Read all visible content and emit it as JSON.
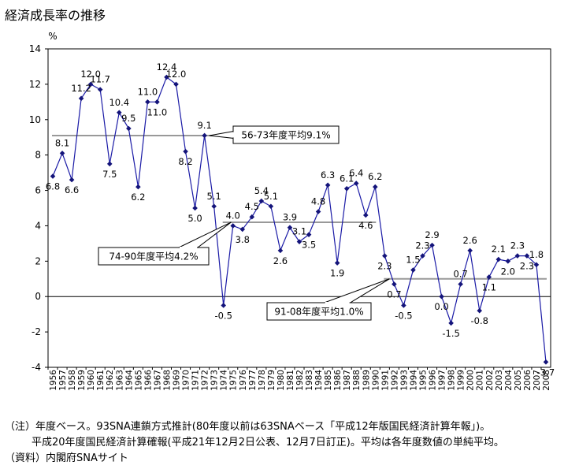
{
  "title": "経済成長率の推移",
  "chart_data": {
    "type": "line",
    "title": "経済成長率の推移",
    "ylabel": "%",
    "ylim": [
      -4,
      14
    ],
    "yticks": [
      14,
      12,
      10,
      8,
      6,
      4,
      2,
      0,
      -2,
      -4
    ],
    "grid": false,
    "categories": [
      "1956",
      "1957",
      "1958",
      "1959",
      "1960",
      "1961",
      "1962",
      "1963",
      "1964",
      "1965",
      "1966",
      "1967",
      "1968",
      "1969",
      "1970",
      "1971",
      "1972",
      "1973",
      "1974",
      "1975",
      "1976",
      "1977",
      "1978",
      "1979",
      "1980",
      "1981",
      "1982",
      "1983",
      "1984",
      "1985",
      "1986",
      "1987",
      "1988",
      "1989",
      "1990",
      "1991",
      "1992",
      "1993",
      "1994",
      "1995",
      "1996",
      "1997",
      "1998",
      "1999",
      "2000",
      "2001",
      "2002",
      "2003",
      "2004",
      "2005",
      "2006",
      "2007",
      "2008"
    ],
    "values": [
      6.8,
      8.1,
      6.6,
      11.2,
      12.0,
      11.7,
      7.5,
      10.4,
      9.5,
      6.2,
      11.0,
      11.0,
      12.4,
      12.0,
      8.2,
      5.0,
      9.1,
      5.1,
      -0.5,
      4.0,
      3.8,
      4.5,
      5.4,
      5.1,
      2.6,
      3.9,
      3.1,
      3.5,
      4.8,
      6.3,
      1.9,
      6.1,
      6.4,
      4.6,
      6.2,
      2.3,
      0.7,
      -0.5,
      1.5,
      2.3,
      2.9,
      0.0,
      -1.5,
      0.7,
      2.6,
      -0.8,
      1.1,
      2.1,
      2.0,
      2.3,
      2.3,
      1.8,
      -3.7
    ],
    "data_labels": [
      "6.8",
      "8.1",
      "6.6",
      "11.2",
      "12.0",
      "11.7",
      "7.5",
      "10.4",
      "9.5",
      "6.2",
      "11.0",
      "11.0",
      "12.4",
      "12.0",
      "8.2",
      "5.0",
      "9.1",
      "5.1",
      "-0.5",
      "4.0",
      "3.8",
      "4.5",
      "5.4",
      "5.1",
      "2.6",
      "3.9",
      "3.1",
      "3.5",
      "4.8",
      "6.3",
      "1.9",
      "6.1",
      "6.4",
      "4.6",
      "6.2",
      "2.3",
      "0.7",
      "-0.5",
      "1.5",
      "2.3",
      "2.9",
      "0.0",
      "-1.5",
      "0.7",
      "2.6",
      "-0.8",
      "1.1",
      "2.1",
      "2.0",
      "2.3",
      "2.3",
      "1.8",
      "-3.7"
    ],
    "label_sides": [
      "b",
      "t",
      "b",
      "t",
      "t",
      "t",
      "b",
      "t",
      "t",
      "b",
      "t",
      "b",
      "t",
      "t",
      "b",
      "b",
      "t",
      "t",
      "b",
      "t",
      "b",
      "t",
      "t",
      "t",
      "b",
      "t",
      "t",
      "b",
      "t",
      "t",
      "b",
      "t",
      "t",
      "b",
      "t",
      "b",
      "b",
      "b",
      "t",
      "t",
      "t",
      "b",
      "b",
      "t",
      "t",
      "b",
      "b",
      "t",
      "b",
      "t",
      "b",
      "t",
      "b"
    ],
    "averages": [
      {
        "label": "56-73年度平均9.1%",
        "value": 9.1,
        "from": "1956",
        "to": "1973"
      },
      {
        "label": "74-90年度平均4.2%",
        "value": 4.2,
        "from": "1974",
        "to": "1990"
      },
      {
        "label": "91-08年度平均1.0%",
        "value": 1.0,
        "from": "1991",
        "to": "2008"
      }
    ],
    "colors": {
      "line": "#1a1aa6",
      "marker": "#14147a",
      "average": "#999999"
    }
  },
  "notes": [
    "（注）年度ベース。93SNA連鎖方式推計(80年度以前は63SNAベース「平成12年版国民経済計算年報」)。",
    "平成20年度国民経済計算確報(平成21年12月2日公表、12月7日訂正)。平均は各年度数値の単純平均。",
    "（資料）内閣府SNAサイト"
  ]
}
